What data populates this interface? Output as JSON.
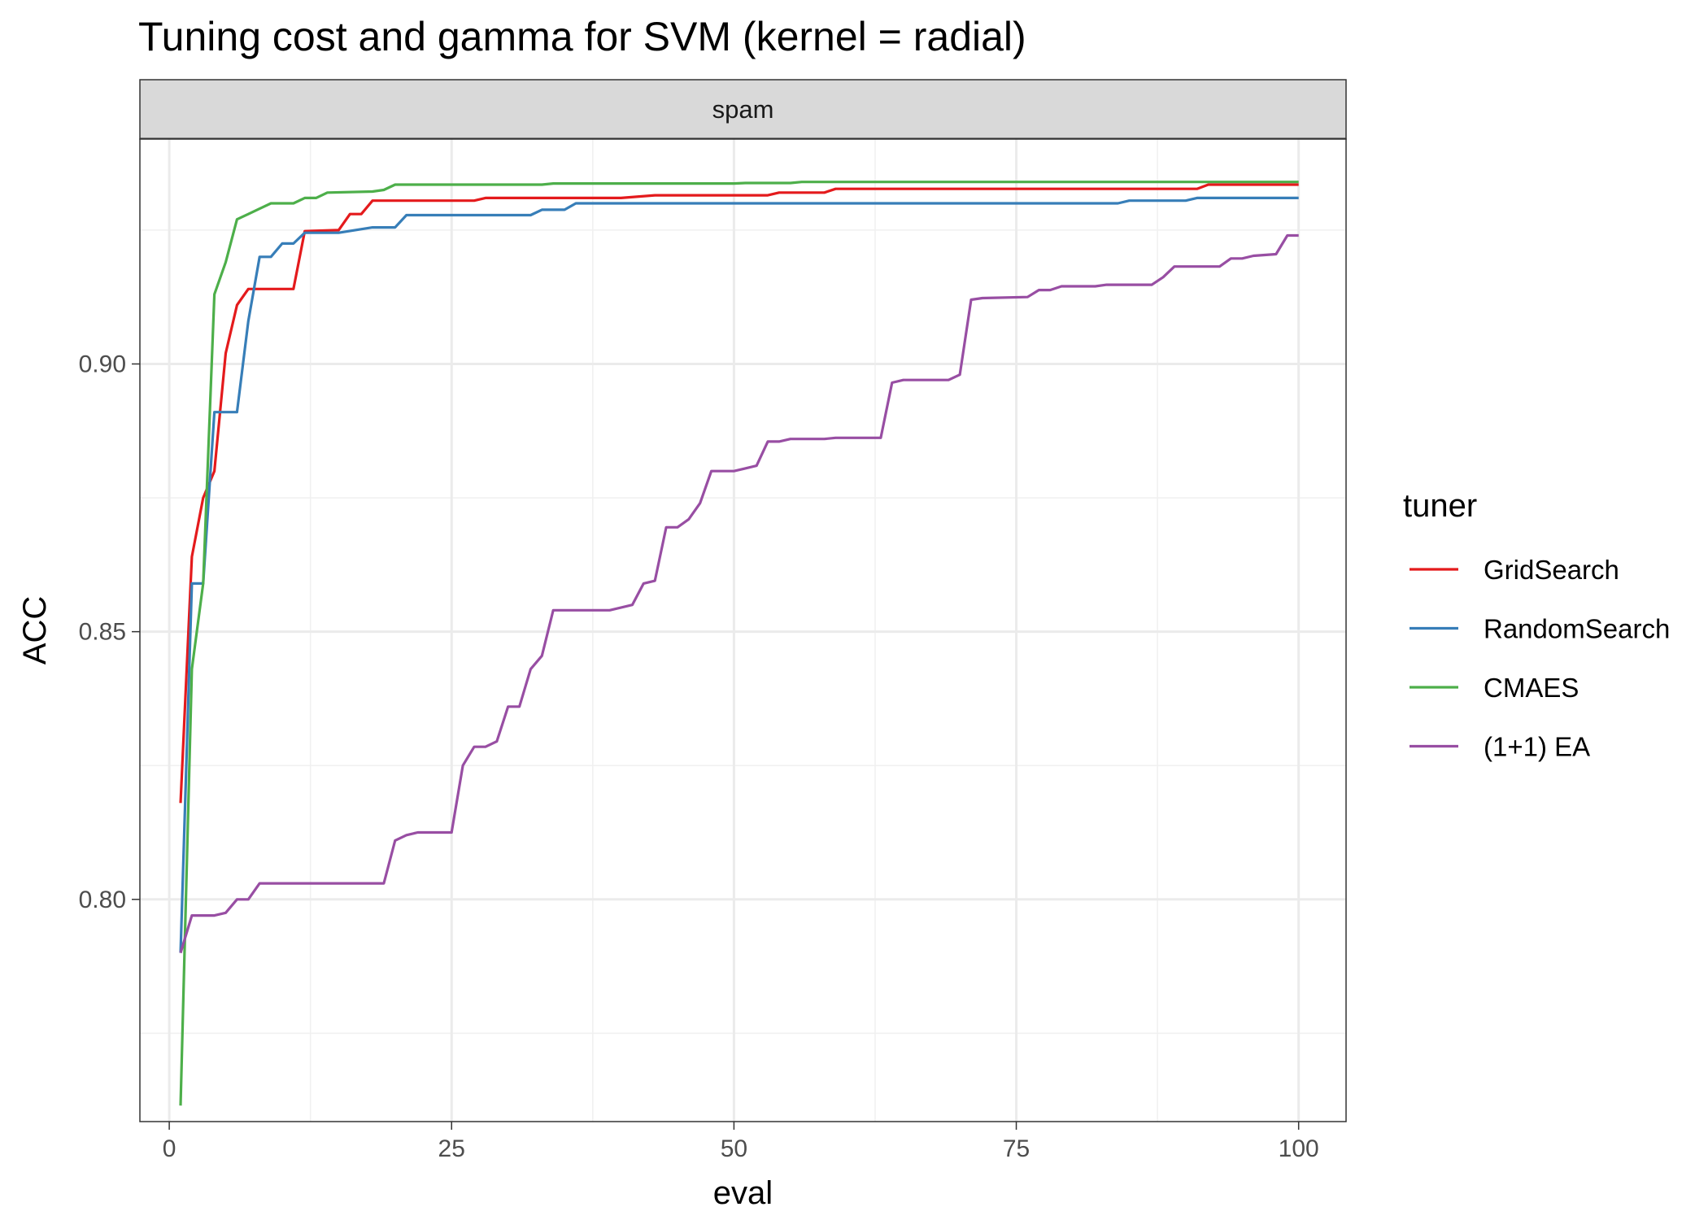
{
  "chart_data": {
    "type": "line",
    "title": "Tuning cost and gamma for SVM (kernel = radial)",
    "facet": "spam",
    "xlabel": "eval",
    "ylabel": "ACC",
    "xlim": [
      -2.6,
      104.2
    ],
    "ylim": [
      0.7585,
      0.942
    ],
    "x_major_ticks": [
      0,
      25,
      50,
      75,
      100
    ],
    "x_tick_labels": [
      "0",
      "25",
      "50",
      "75",
      "100"
    ],
    "x_minor_ticks": [
      12.5,
      37.5,
      62.5,
      87.5
    ],
    "y_major_ticks": [
      0.8,
      0.85,
      0.9
    ],
    "y_tick_labels": [
      "0.80",
      "0.85",
      "0.90"
    ],
    "y_minor_ticks": [
      0.775,
      0.825,
      0.875,
      0.925
    ],
    "grid": true,
    "legend": {
      "title": "tuner",
      "position": "right"
    },
    "series": [
      {
        "name": "GridSearch",
        "color": "#e41a1c",
        "points": [
          [
            1,
            0.818
          ],
          [
            2,
            0.864
          ],
          [
            3,
            0.875
          ],
          [
            4,
            0.88
          ],
          [
            5,
            0.902
          ],
          [
            6,
            0.911
          ],
          [
            7,
            0.914
          ],
          [
            11,
            0.914
          ],
          [
            12,
            0.9248
          ],
          [
            15,
            0.925
          ],
          [
            16,
            0.928
          ],
          [
            17,
            0.928
          ],
          [
            18,
            0.9305
          ],
          [
            27,
            0.9305
          ],
          [
            28,
            0.931
          ],
          [
            40,
            0.931
          ],
          [
            43,
            0.9315
          ],
          [
            53,
            0.9315
          ],
          [
            54,
            0.932
          ],
          [
            58,
            0.932
          ],
          [
            59,
            0.9327
          ],
          [
            91,
            0.9327
          ],
          [
            92,
            0.9335
          ],
          [
            100,
            0.9335
          ]
        ]
      },
      {
        "name": "RandomSearch",
        "color": "#377eb8",
        "points": [
          [
            1,
            0.79
          ],
          [
            2,
            0.859
          ],
          [
            3,
            0.859
          ],
          [
            4,
            0.891
          ],
          [
            6,
            0.891
          ],
          [
            7,
            0.908
          ],
          [
            8,
            0.92
          ],
          [
            9,
            0.92
          ],
          [
            10,
            0.9225
          ],
          [
            11,
            0.9225
          ],
          [
            12,
            0.9245
          ],
          [
            15,
            0.9245
          ],
          [
            18,
            0.9255
          ],
          [
            20,
            0.9255
          ],
          [
            21,
            0.9278
          ],
          [
            32,
            0.9278
          ],
          [
            33,
            0.9288
          ],
          [
            35,
            0.9288
          ],
          [
            36,
            0.93
          ],
          [
            84,
            0.93
          ],
          [
            85,
            0.9305
          ],
          [
            90,
            0.9305
          ],
          [
            91,
            0.931
          ],
          [
            100,
            0.931
          ]
        ]
      },
      {
        "name": "CMAES",
        "color": "#4daf4a",
        "points": [
          [
            1,
            0.7615
          ],
          [
            2,
            0.843
          ],
          [
            3,
            0.859
          ],
          [
            4,
            0.913
          ],
          [
            5,
            0.919
          ],
          [
            6,
            0.927
          ],
          [
            7,
            0.928
          ],
          [
            8,
            0.929
          ],
          [
            9,
            0.93
          ],
          [
            11,
            0.93
          ],
          [
            12,
            0.931
          ],
          [
            13,
            0.931
          ],
          [
            14,
            0.932
          ],
          [
            18,
            0.9322
          ],
          [
            19,
            0.9325
          ],
          [
            20,
            0.9335
          ],
          [
            33,
            0.9335
          ],
          [
            34,
            0.9337
          ],
          [
            50,
            0.9337
          ],
          [
            51,
            0.9338
          ],
          [
            55,
            0.9338
          ],
          [
            56,
            0.934
          ],
          [
            100,
            0.934
          ]
        ]
      },
      {
        "name": "(1+1) EA",
        "color": "#984ea3",
        "points": [
          [
            1,
            0.79
          ],
          [
            2,
            0.797
          ],
          [
            4,
            0.797
          ],
          [
            5,
            0.7975
          ],
          [
            6,
            0.8
          ],
          [
            7,
            0.8
          ],
          [
            8,
            0.803
          ],
          [
            19,
            0.803
          ],
          [
            20,
            0.811
          ],
          [
            21,
            0.812
          ],
          [
            22,
            0.8125
          ],
          [
            25,
            0.8125
          ],
          [
            26,
            0.825
          ],
          [
            27,
            0.8285
          ],
          [
            28,
            0.8285
          ],
          [
            29,
            0.8295
          ],
          [
            30,
            0.836
          ],
          [
            31,
            0.836
          ],
          [
            32,
            0.843
          ],
          [
            33,
            0.8455
          ],
          [
            34,
            0.854
          ],
          [
            39,
            0.854
          ],
          [
            41,
            0.855
          ],
          [
            42,
            0.859
          ],
          [
            43,
            0.8595
          ],
          [
            44,
            0.8695
          ],
          [
            45,
            0.8695
          ],
          [
            46,
            0.871
          ],
          [
            47,
            0.874
          ],
          [
            48,
            0.88
          ],
          [
            50,
            0.88
          ],
          [
            51,
            0.8805
          ],
          [
            52,
            0.881
          ],
          [
            53,
            0.8855
          ],
          [
            54,
            0.8855
          ],
          [
            55,
            0.886
          ],
          [
            58,
            0.886
          ],
          [
            59,
            0.8862
          ],
          [
            63,
            0.8862
          ],
          [
            64,
            0.8965
          ],
          [
            65,
            0.897
          ],
          [
            69,
            0.897
          ],
          [
            70,
            0.898
          ],
          [
            71,
            0.912
          ],
          [
            72,
            0.9123
          ],
          [
            76,
            0.9125
          ],
          [
            77,
            0.9138
          ],
          [
            78,
            0.9138
          ],
          [
            79,
            0.9145
          ],
          [
            82,
            0.9145
          ],
          [
            83,
            0.9148
          ],
          [
            87,
            0.9148
          ],
          [
            88,
            0.9162
          ],
          [
            89,
            0.9182
          ],
          [
            93,
            0.9182
          ],
          [
            94,
            0.9197
          ],
          [
            95,
            0.9197
          ],
          [
            96,
            0.9202
          ],
          [
            98,
            0.9205
          ],
          [
            99,
            0.924
          ],
          [
            100,
            0.924
          ]
        ]
      }
    ]
  }
}
